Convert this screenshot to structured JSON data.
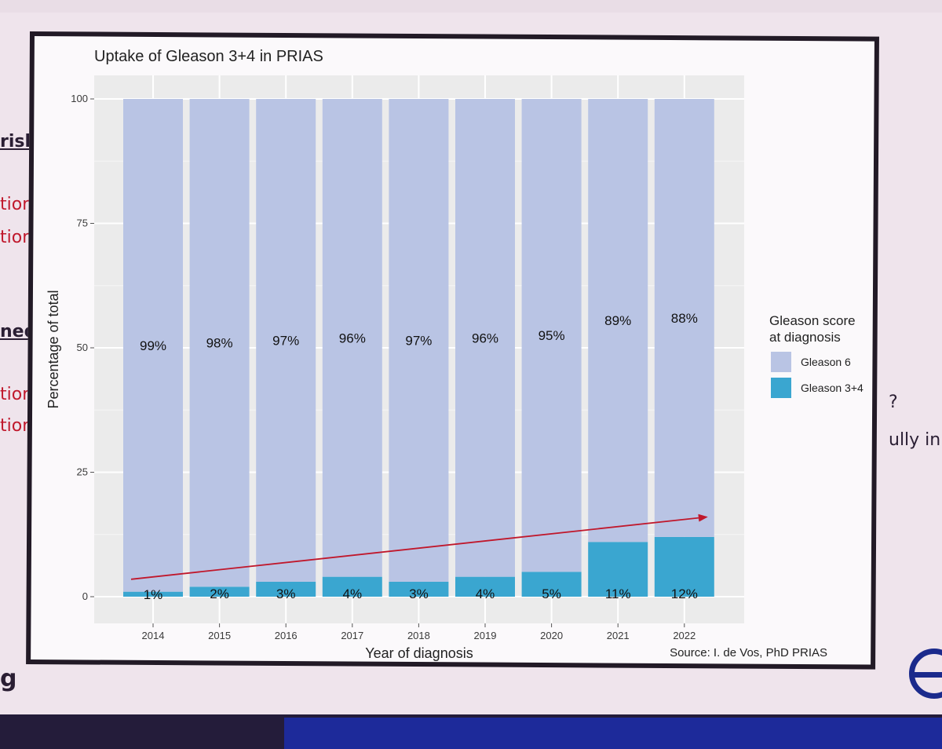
{
  "background_fragments": {
    "left": [
      "risk",
      "tion",
      "tion",
      "ned",
      "tion",
      "tion",
      "g"
    ],
    "right": [
      "?",
      "ully in"
    ]
  },
  "chart_data": {
    "type": "bar",
    "stacked": true,
    "title": "Uptake of Gleason 3+4 in PRIAS",
    "xlabel": "Year of diagnosis",
    "ylabel": "Percentage of total",
    "ylim": [
      0,
      100
    ],
    "yticks": [
      0,
      25,
      50,
      75,
      100
    ],
    "grid": true,
    "legend_position": "right",
    "legend_title": "Gleason score at diagnosis",
    "legend_title_lines": [
      "Gleason score",
      "at diagnosis"
    ],
    "categories": [
      "2014",
      "2015",
      "2016",
      "2017",
      "2018",
      "2019",
      "2020",
      "2021",
      "2022"
    ],
    "series": [
      {
        "name": "Gleason 6",
        "color": "#b9c4e4",
        "values": [
          99,
          98,
          97,
          96,
          97,
          96,
          95,
          89,
          88
        ],
        "labels": [
          "99%",
          "98%",
          "97%",
          "96%",
          "97%",
          "96%",
          "95%",
          "89%",
          "88%"
        ]
      },
      {
        "name": "Gleason 3+4",
        "color": "#3aa6d0",
        "values": [
          1,
          2,
          3,
          4,
          3,
          4,
          5,
          11,
          12
        ],
        "labels": [
          "1%",
          "2%",
          "3%",
          "4%",
          "3%",
          "4%",
          "5%",
          "11%",
          "12%"
        ]
      }
    ],
    "annotation": {
      "type": "trend-arrow",
      "color": "#c0182c",
      "from": {
        "category": "2014",
        "value": 3.5
      },
      "to": {
        "category": "2022",
        "value": 16
      }
    },
    "source": "Source: I. de Vos, PhD PRIAS"
  }
}
